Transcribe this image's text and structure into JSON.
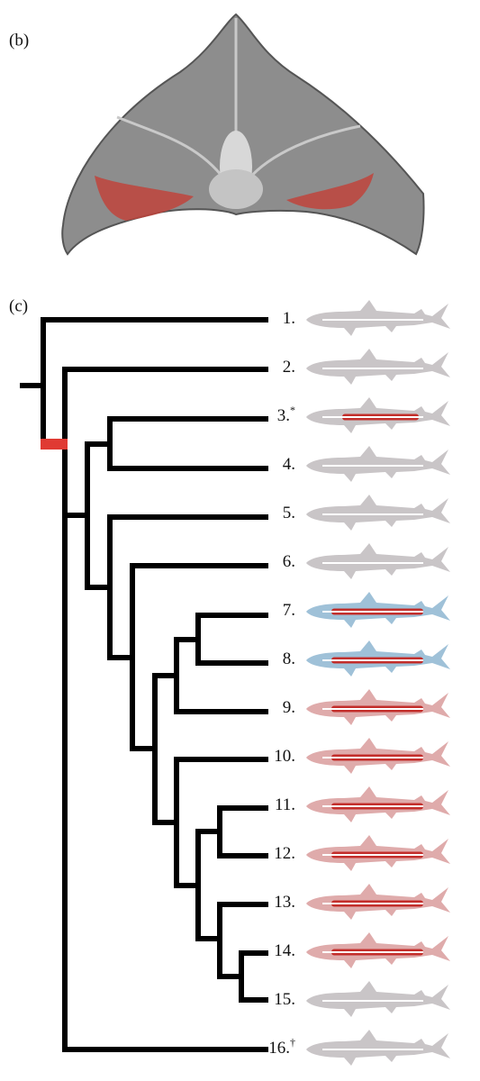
{
  "panel_b": {
    "label": "(b)"
  },
  "panel_c": {
    "label": "(c)",
    "leaves": [
      {
        "label": "1."
      },
      {
        "label": "2."
      },
      {
        "label": "3.",
        "mark": "*"
      },
      {
        "label": "4."
      },
      {
        "label": "5."
      },
      {
        "label": "6."
      },
      {
        "label": "7."
      },
      {
        "label": "8."
      },
      {
        "label": "9."
      },
      {
        "label": "10."
      },
      {
        "label": "11."
      },
      {
        "label": "12."
      },
      {
        "label": "13."
      },
      {
        "label": "14."
      },
      {
        "label": "15."
      },
      {
        "label": "16.",
        "mark": "†"
      }
    ]
  }
}
